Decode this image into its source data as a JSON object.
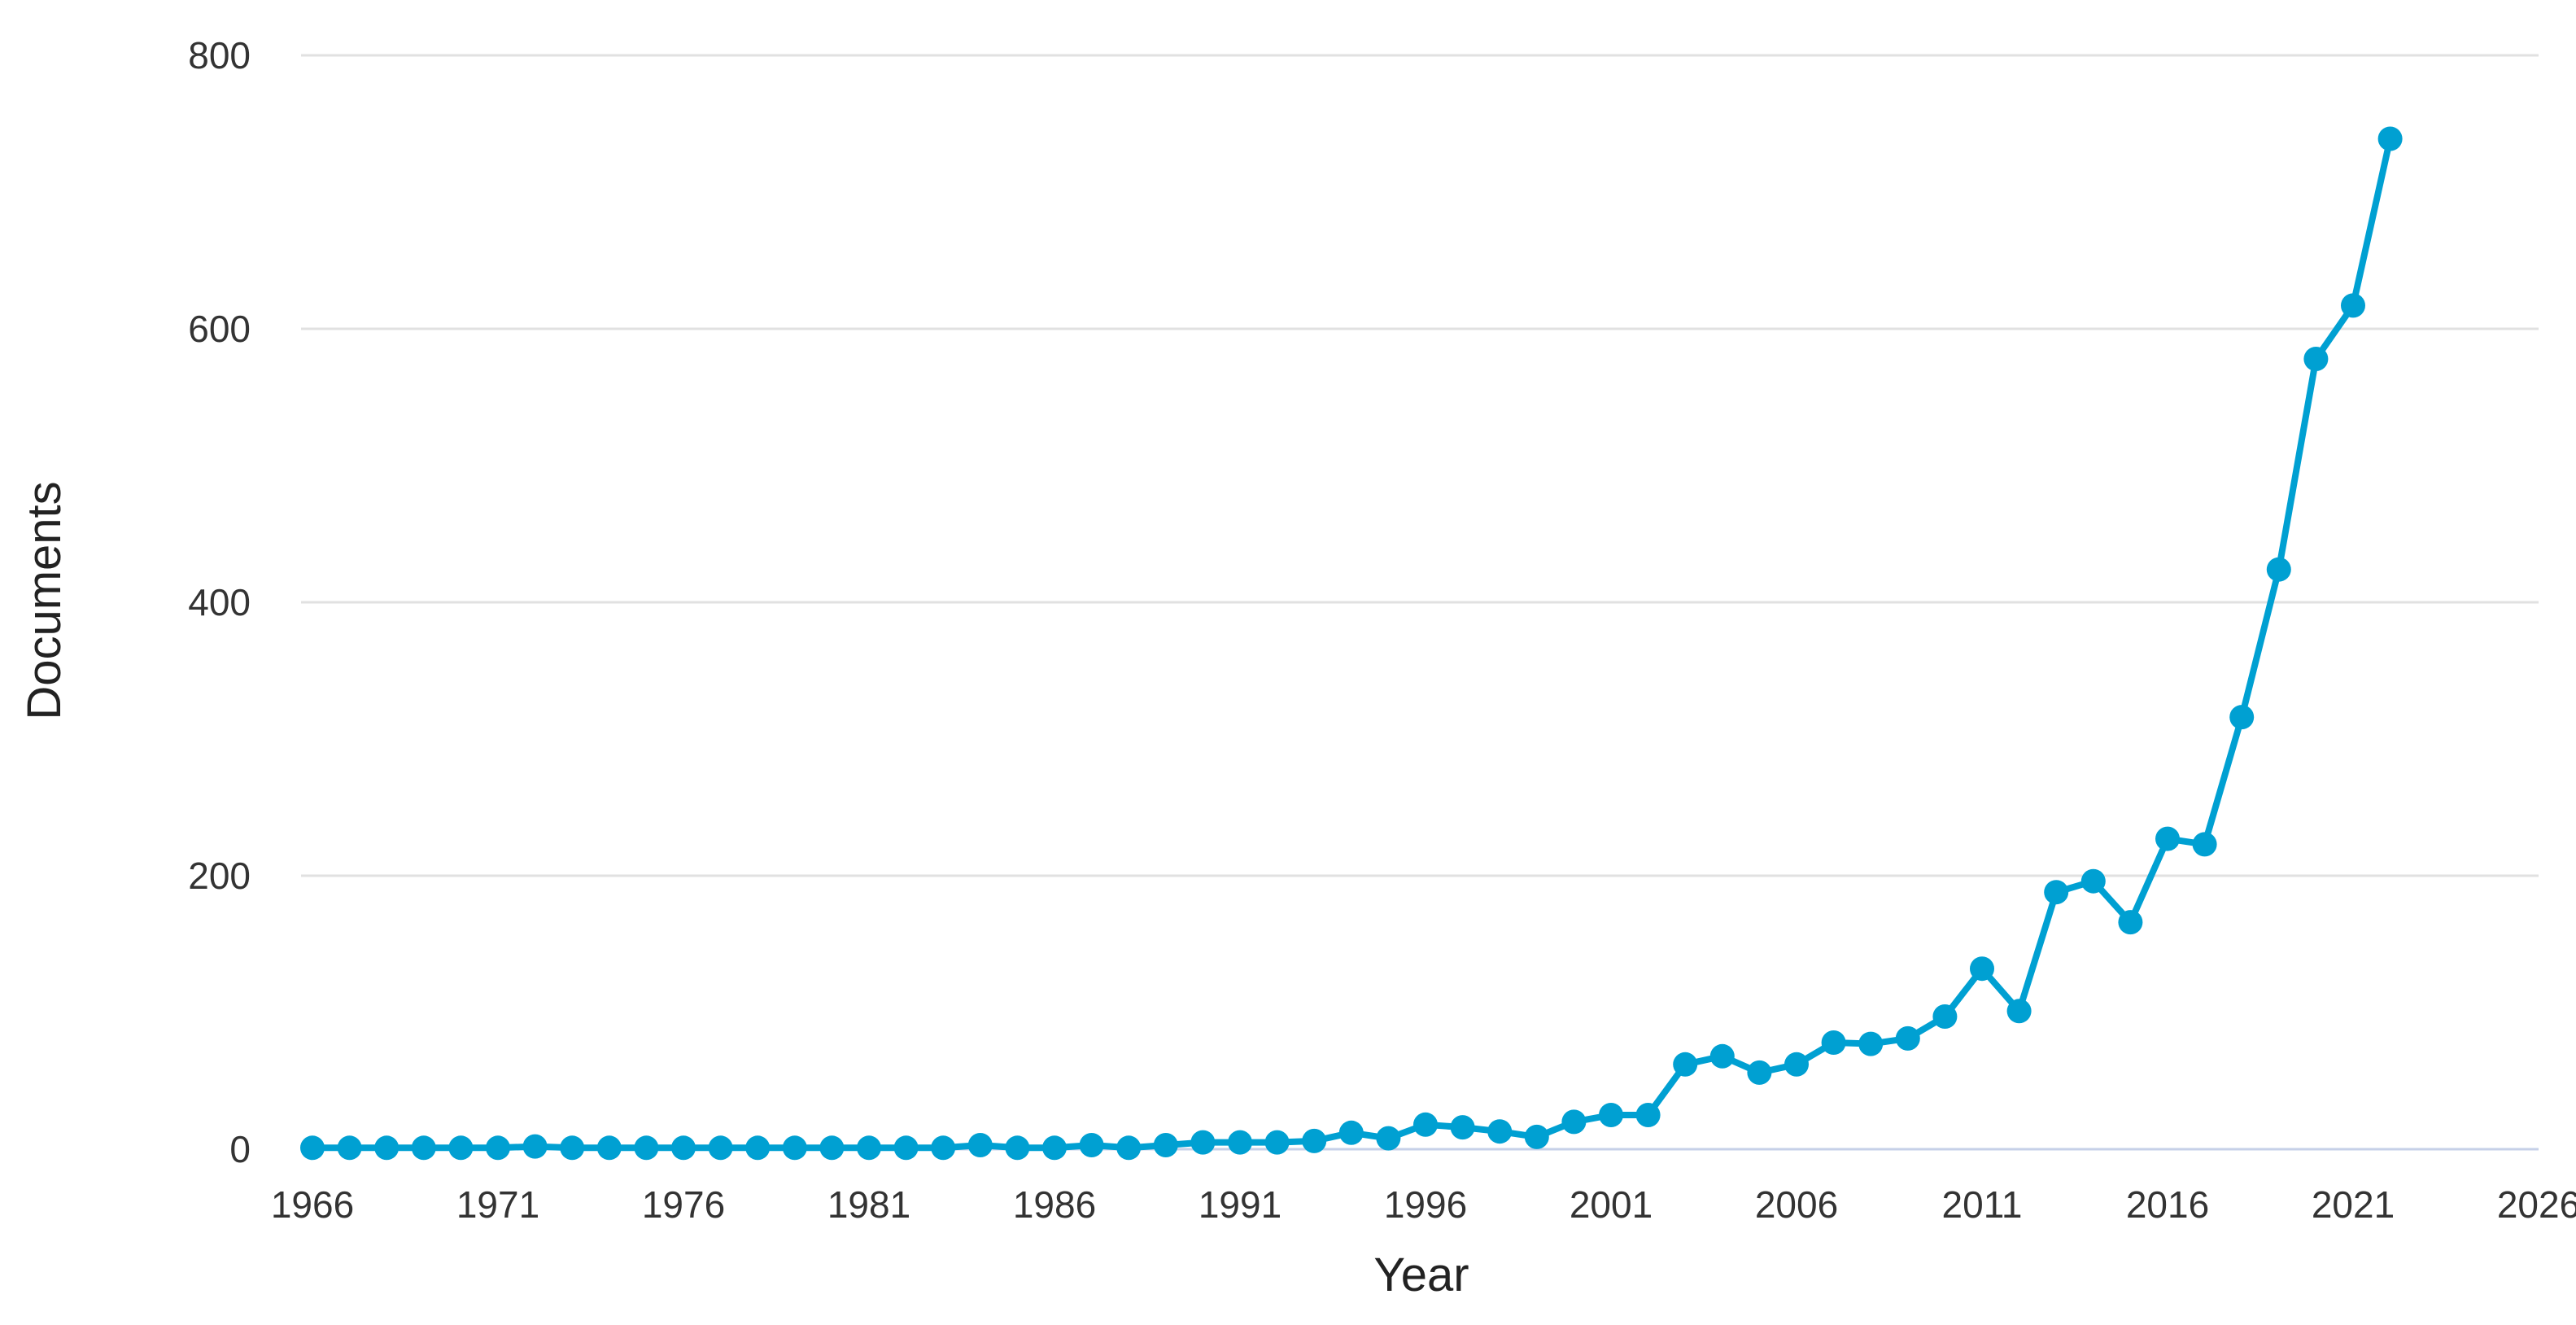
{
  "chart_data": {
    "type": "line",
    "title": "",
    "xlabel": "Year",
    "ylabel": "Documents",
    "xlim": [
      1966,
      2026
    ],
    "ylim": [
      0,
      800
    ],
    "x_ticks": [
      "1966",
      "1971",
      "1976",
      "1981",
      "1986",
      "1991",
      "1996",
      "2001",
      "2006",
      "2011",
      "2016",
      "2021",
      "2026"
    ],
    "y_ticks": [
      "0",
      "200",
      "400",
      "600",
      "800"
    ],
    "grid": true,
    "legend": "none",
    "series": [
      {
        "color": "#00a0d2",
        "x": [
          1966,
          1967,
          1968,
          1969,
          1970,
          1971,
          1972,
          1973,
          1974,
          1975,
          1976,
          1977,
          1978,
          1979,
          1980,
          1981,
          1982,
          1983,
          1984,
          1985,
          1986,
          1987,
          1988,
          1989,
          1990,
          1991,
          1992,
          1993,
          1994,
          1995,
          1996,
          1997,
          1998,
          1999,
          2000,
          2001,
          2002,
          2003,
          2004,
          2005,
          2006,
          2007,
          2008,
          2009,
          2010,
          2011,
          2012,
          2013,
          2014,
          2015,
          2016,
          2017,
          2018,
          2019,
          2020,
          2021,
          2022
        ],
        "values": [
          1,
          1,
          1,
          1,
          1,
          1,
          2,
          1,
          1,
          1,
          1,
          1,
          1,
          1,
          1,
          1,
          1,
          1,
          3,
          1,
          1,
          3,
          1,
          3,
          5,
          5,
          5,
          6,
          12,
          8,
          18,
          16,
          13,
          9,
          20,
          25,
          25,
          62,
          68,
          56,
          62,
          78,
          77,
          81,
          97,
          132,
          101,
          188,
          196,
          166,
          227,
          223,
          316,
          424,
          578,
          617,
          739
        ]
      }
    ]
  }
}
